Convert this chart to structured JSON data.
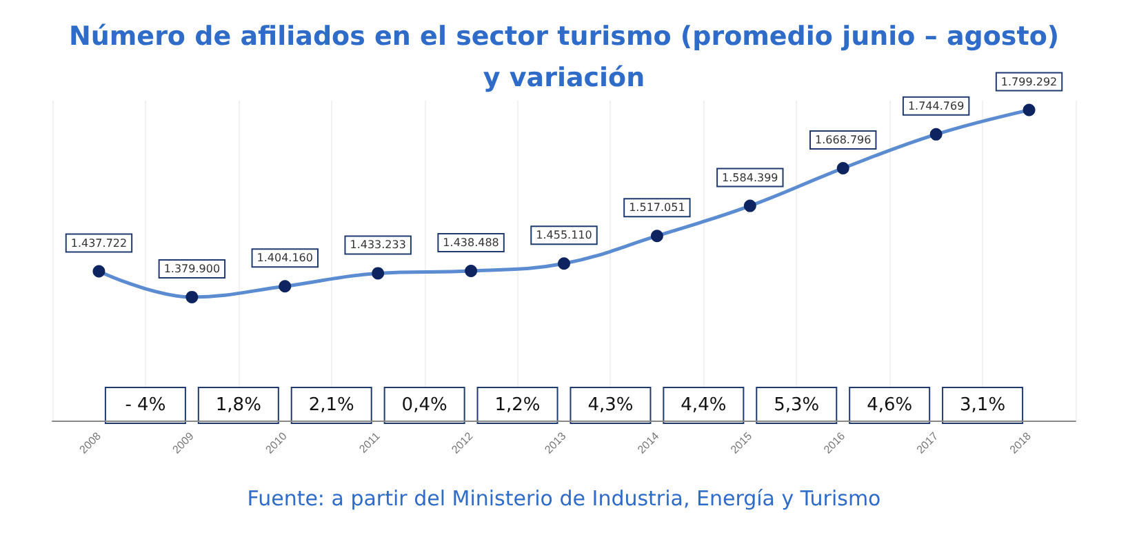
{
  "chart_data": {
    "type": "line",
    "title": "Número de afiliados en el sector turismo (promedio junio – agosto)\ny variación",
    "categories": [
      "2008",
      "2009",
      "2010",
      "2011",
      "2012",
      "2013",
      "2014",
      "2015",
      "2016",
      "2017",
      "2018"
    ],
    "series": [
      {
        "color": "#5b8bd0",
        "values": [
          1437722,
          1379900,
          1404160,
          1433233,
          1438488,
          1455110,
          1517051,
          1584399,
          1668796,
          1744769,
          1799292
        ],
        "value_labels": [
          "1.437.722",
          "1.379.900",
          "1.404.160",
          "1.433.233",
          "1.438.488",
          "1.455.110",
          "1.517.051",
          "1.584.399",
          "1.668.796",
          "1.744.769",
          "1.799.292"
        ]
      }
    ],
    "marker": "circle",
    "grid": "x",
    "annotations": [
      "- 4%",
      "1,8%",
      "2,1%",
      "0,4%",
      "1,2%",
      "4,3%",
      "4,4%",
      "5,3%",
      "4,6%",
      "3,1%",
      "Fuente: a partir del Ministerio de Industria, Energía y Turismo"
    ]
  }
}
